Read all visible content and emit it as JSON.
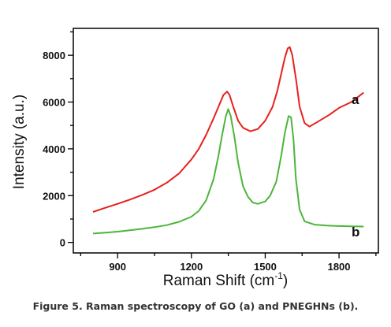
{
  "caption": "Figure 5. Raman spectroscopy of GO (a) and PNEGHNs (b).",
  "chart_data": {
    "type": "line",
    "xlabel": "Raman Shift (cm",
    "xlabel_sup": "-1",
    "xlabel_end": ")",
    "ylabel": "Intensity (a.u.)",
    "xlim": [
      720,
      1960
    ],
    "ylim": [
      -450,
      9150
    ],
    "x_ticks": [
      900,
      1200,
      1500,
      1800
    ],
    "y_ticks": [
      0,
      2000,
      4000,
      6000,
      8000
    ],
    "x_tick_labels": [
      "900",
      "1200",
      "1500",
      "1800"
    ],
    "y_tick_labels": [
      "0",
      "2000",
      "4000",
      "6000",
      "8000"
    ],
    "grid": false,
    "series": [
      {
        "name": "a",
        "color": "#e8201c",
        "x": [
          800,
          850,
          900,
          950,
          1000,
          1050,
          1100,
          1150,
          1200,
          1230,
          1260,
          1290,
          1310,
          1330,
          1345,
          1355,
          1370,
          1390,
          1410,
          1440,
          1470,
          1500,
          1530,
          1550,
          1565,
          1580,
          1592,
          1600,
          1610,
          1625,
          1640,
          1660,
          1680,
          1720,
          1760,
          1800,
          1850,
          1900
        ],
        "values": [
          1300,
          1480,
          1650,
          1830,
          2030,
          2250,
          2550,
          2950,
          3550,
          4000,
          4600,
          5300,
          5800,
          6300,
          6450,
          6300,
          5800,
          5200,
          4900,
          4750,
          4850,
          5200,
          5800,
          6500,
          7200,
          7900,
          8300,
          8350,
          8000,
          7000,
          5800,
          5100,
          4950,
          5200,
          5450,
          5750,
          6000,
          6400
        ]
      },
      {
        "name": "b",
        "color": "#4cb53a",
        "x": [
          800,
          850,
          900,
          950,
          1000,
          1050,
          1100,
          1150,
          1200,
          1230,
          1260,
          1290,
          1310,
          1325,
          1340,
          1350,
          1360,
          1375,
          1390,
          1410,
          1430,
          1450,
          1470,
          1500,
          1520,
          1545,
          1565,
          1580,
          1595,
          1605,
          1615,
          1625,
          1640,
          1660,
          1700,
          1750,
          1800,
          1850,
          1900
        ],
        "values": [
          380,
          420,
          460,
          520,
          580,
          650,
          740,
          880,
          1100,
          1350,
          1800,
          2700,
          3700,
          4600,
          5400,
          5700,
          5400,
          4500,
          3400,
          2400,
          1950,
          1700,
          1650,
          1750,
          2000,
          2600,
          3700,
          4700,
          5400,
          5350,
          4400,
          2700,
          1400,
          900,
          760,
          720,
          700,
          690,
          680
        ]
      }
    ]
  }
}
